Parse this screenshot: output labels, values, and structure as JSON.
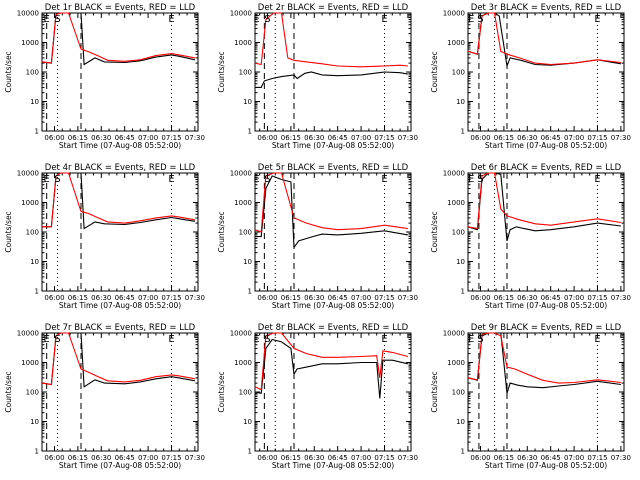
{
  "chart_data": [
    {
      "type": "line",
      "title": "Det 1r BLACK = Events, RED = LLD",
      "xlabel": "Start Time (07-Aug-08 05:52:00)",
      "ylabel": "Counts/sec",
      "y_scale": "log",
      "ylim": [
        1,
        10000
      ],
      "y_ticks": [
        "1",
        "10",
        "100",
        "1000",
        "10000"
      ],
      "x_ticks": [
        "06:00",
        "06:15",
        "06:30",
        "06:45",
        "07:00",
        "07:15",
        "07:30"
      ],
      "markers": [
        {
          "label": "E",
          "t": "05:55"
        },
        {
          "label": "S",
          "t": "06:02"
        },
        {
          "label": "E",
          "t": "07:15"
        }
      ],
      "dashed_lines": [
        "05:55",
        "06:17"
      ],
      "dotted_lines": [
        "06:02",
        "07:15"
      ],
      "series": [
        {
          "color": "#000000",
          "x": [
            "05:52",
            "05:58",
            "06:01",
            "06:04",
            "06:09",
            "06:17",
            "06:19",
            "06:26",
            "06:32",
            "06:45",
            "06:55",
            "07:05",
            "07:15",
            "07:20",
            "07:30"
          ],
          "y": [
            220,
            200,
            9000,
            10000,
            10000,
            10000,
            180,
            300,
            220,
            210,
            240,
            320,
            380,
            340,
            260
          ]
        },
        {
          "color": "#ff0000",
          "x": [
            "05:52",
            "05:58",
            "06:01",
            "06:04",
            "06:09",
            "06:17",
            "06:22",
            "06:28",
            "06:34",
            "06:45",
            "06:55",
            "07:05",
            "07:15",
            "07:20",
            "07:30"
          ],
          "y": [
            220,
            200,
            9000,
            10000,
            10000,
            600,
            480,
            350,
            250,
            230,
            260,
            360,
            420,
            380,
            300
          ]
        }
      ]
    },
    {
      "type": "line",
      "title": "Det 2r BLACK = Events, RED = LLD",
      "xlabel": "Start Time (07-Aug-08 05:52:00)",
      "ylabel": "Counts/sec",
      "y_scale": "log",
      "ylim": [
        1,
        10000
      ],
      "y_ticks": [
        "1",
        "10",
        "100",
        "1000",
        "10000"
      ],
      "x_ticks": [
        "06:00",
        "06:15",
        "06:30",
        "06:45",
        "07:00",
        "07:15",
        "07:30"
      ],
      "markers": [
        {
          "label": "E",
          "t": "05:53"
        },
        {
          "label": "S",
          "t": "06:00"
        },
        {
          "label": "E",
          "t": "07:15"
        }
      ],
      "dashed_lines": [
        "05:58",
        "06:17"
      ],
      "dotted_lines": [
        "06:05",
        "07:15"
      ],
      "series": [
        {
          "color": "#000000",
          "x": [
            "05:52",
            "05:56",
            "05:58",
            "06:03",
            "06:09",
            "06:17",
            "06:19",
            "06:24",
            "06:28",
            "06:35",
            "06:45",
            "07:00",
            "07:15",
            "07:25",
            "07:30"
          ],
          "y": [
            30,
            30,
            50,
            60,
            70,
            80,
            60,
            90,
            100,
            80,
            75,
            80,
            100,
            95,
            85
          ]
        },
        {
          "color": "#ff0000",
          "x": [
            "05:52",
            "05:56",
            "05:59",
            "06:04",
            "06:09",
            "06:13",
            "06:17",
            "06:25",
            "06:35",
            "06:45",
            "07:00",
            "07:15",
            "07:25",
            "07:30"
          ],
          "y": [
            200,
            180,
            6000,
            10000,
            10000,
            300,
            250,
            220,
            190,
            160,
            150,
            160,
            170,
            160
          ]
        }
      ]
    },
    {
      "type": "line",
      "title": "Det 3r BLACK = Events, RED = LLD",
      "xlabel": "Start Time (07-Aug-08 05:52:00)",
      "ylabel": "Counts/sec",
      "y_scale": "log",
      "ylim": [
        1,
        10000
      ],
      "y_ticks": [
        "1",
        "10",
        "100",
        "1000",
        "10000"
      ],
      "x_ticks": [
        "06:00",
        "06:15",
        "06:30",
        "06:45",
        "07:00",
        "07:15",
        "07:30"
      ],
      "markers": [
        {
          "label": "E",
          "t": "05:54"
        },
        {
          "label": "S",
          "t": "06:00"
        },
        {
          "label": "E",
          "t": "07:15"
        }
      ],
      "dashed_lines": [
        "05:59",
        "06:17"
      ],
      "dotted_lines": [
        "06:09",
        "07:15"
      ],
      "series": [
        {
          "color": "#000000",
          "x": [
            "05:52",
            "05:58",
            "06:01",
            "06:05",
            "06:09",
            "06:12",
            "06:17",
            "06:19",
            "06:26",
            "06:35",
            "06:45",
            "07:00",
            "07:15",
            "07:30"
          ],
          "y": [
            500,
            400,
            8000,
            10000,
            10000,
            8000,
            160,
            300,
            250,
            180,
            170,
            200,
            260,
            190
          ]
        },
        {
          "color": "#ff0000",
          "x": [
            "05:52",
            "05:58",
            "06:01",
            "06:05",
            "06:09",
            "06:13",
            "06:17",
            "06:25",
            "06:35",
            "06:45",
            "07:00",
            "07:15",
            "07:30"
          ],
          "y": [
            500,
            400,
            8000,
            10000,
            10000,
            500,
            400,
            300,
            200,
            180,
            200,
            260,
            210
          ]
        }
      ]
    },
    {
      "type": "line",
      "title": "Det 4r BLACK = Events, RED = LLD",
      "xlabel": "Start Time (07-Aug-08 05:52:00)",
      "ylabel": "Counts/sec",
      "y_scale": "log",
      "ylim": [
        1,
        10000
      ],
      "y_ticks": [
        "1",
        "10",
        "100",
        "1000",
        "10000"
      ],
      "x_ticks": [
        "06:00",
        "06:15",
        "06:30",
        "06:45",
        "07:00",
        "07:15",
        "07:30"
      ],
      "markers": [
        {
          "label": "E",
          "t": "05:55"
        },
        {
          "label": "S",
          "t": "06:02"
        },
        {
          "label": "E",
          "t": "07:15"
        }
      ],
      "dashed_lines": [
        "05:55",
        "06:17"
      ],
      "dotted_lines": [
        "06:02",
        "07:15"
      ],
      "series": [
        {
          "color": "#000000",
          "x": [
            "05:52",
            "05:58",
            "06:01",
            "06:04",
            "06:09",
            "06:17",
            "06:19",
            "06:26",
            "06:32",
            "06:45",
            "06:55",
            "07:05",
            "07:15",
            "07:20",
            "07:30"
          ],
          "y": [
            150,
            150,
            8000,
            10000,
            10000,
            10000,
            130,
            220,
            190,
            180,
            210,
            260,
            310,
            280,
            230
          ]
        },
        {
          "color": "#ff0000",
          "x": [
            "05:52",
            "05:58",
            "06:01",
            "06:04",
            "06:09",
            "06:17",
            "06:22",
            "06:28",
            "06:34",
            "06:45",
            "06:55",
            "07:05",
            "07:15",
            "07:20",
            "07:30"
          ],
          "y": [
            150,
            150,
            8000,
            10000,
            10000,
            500,
            420,
            300,
            220,
            200,
            240,
            300,
            350,
            320,
            260
          ]
        }
      ]
    },
    {
      "type": "line",
      "title": "Det 5r BLACK = Events, RED = LLD",
      "xlabel": "Start Time (07-Aug-08 05:52:00)",
      "ylabel": "Counts/sec",
      "y_scale": "log",
      "ylim": [
        1,
        10000
      ],
      "y_ticks": [
        "1",
        "10",
        "100",
        "1000",
        "10000"
      ],
      "x_ticks": [
        "06:00",
        "06:15",
        "06:30",
        "06:45",
        "07:00",
        "07:15",
        "07:30"
      ],
      "markers": [
        {
          "label": "E",
          "t": "05:53"
        },
        {
          "label": "S",
          "t": "06:00"
        },
        {
          "label": "E",
          "t": "07:15"
        }
      ],
      "dashed_lines": [
        "05:58",
        "06:17"
      ],
      "dotted_lines": [
        "06:05",
        "07:15"
      ],
      "series": [
        {
          "color": "#000000",
          "x": [
            "05:52",
            "05:56",
            "05:59",
            "06:03",
            "06:09",
            "06:15",
            "06:17",
            "06:20",
            "06:25",
            "06:29",
            "06:35",
            "06:45",
            "07:00",
            "07:15",
            "07:30"
          ],
          "y": [
            70,
            70,
            3000,
            8000,
            6000,
            5000,
            30,
            50,
            60,
            70,
            85,
            80,
            90,
            110,
            80
          ]
        },
        {
          "color": "#ff0000",
          "x": [
            "05:52",
            "05:56",
            "05:59",
            "06:04",
            "06:09",
            "06:17",
            "06:25",
            "06:35",
            "06:45",
            "07:00",
            "07:15",
            "07:30"
          ],
          "y": [
            120,
            100,
            8000,
            10000,
            10000,
            300,
            200,
            140,
            120,
            130,
            170,
            130
          ]
        }
      ]
    },
    {
      "type": "line",
      "title": "Det 6r BLACK = Events, RED = LLD",
      "xlabel": "Start Time (07-Aug-08 05:52:00)",
      "ylabel": "Counts/sec",
      "y_scale": "log",
      "ylim": [
        1,
        10000
      ],
      "y_ticks": [
        "1",
        "10",
        "100",
        "1000",
        "10000"
      ],
      "x_ticks": [
        "06:00",
        "06:15",
        "06:30",
        "06:45",
        "07:00",
        "07:15",
        "07:30"
      ],
      "markers": [
        {
          "label": "E",
          "t": "05:54"
        },
        {
          "label": "S",
          "t": "06:00"
        },
        {
          "label": "E",
          "t": "07:15"
        }
      ],
      "dashed_lines": [
        "05:59",
        "06:17"
      ],
      "dotted_lines": [
        "06:09",
        "07:15"
      ],
      "series": [
        {
          "color": "#000000",
          "x": [
            "05:52",
            "05:58",
            "06:01",
            "06:05",
            "06:09",
            "06:13",
            "06:17",
            "06:19",
            "06:23",
            "06:28",
            "06:35",
            "06:45",
            "07:00",
            "07:15",
            "07:30"
          ],
          "y": [
            150,
            120,
            6000,
            10000,
            10000,
            9000,
            50,
            120,
            150,
            130,
            110,
            120,
            150,
            200,
            160
          ]
        },
        {
          "color": "#ff0000",
          "x": [
            "05:52",
            "05:58",
            "06:01",
            "06:05",
            "06:09",
            "06:13",
            "06:17",
            "06:25",
            "06:35",
            "06:45",
            "07:00",
            "07:15",
            "07:30"
          ],
          "y": [
            150,
            130,
            8000,
            10000,
            10000,
            600,
            350,
            260,
            190,
            170,
            220,
            280,
            210
          ]
        }
      ]
    },
    {
      "type": "line",
      "title": "Det 7r BLACK = Events, RED = LLD",
      "xlabel": "Start Time (07-Aug-08 05:52:00)",
      "ylabel": "Counts/sec",
      "y_scale": "log",
      "ylim": [
        1,
        10000
      ],
      "y_ticks": [
        "1",
        "10",
        "100",
        "1000",
        "10000"
      ],
      "x_ticks": [
        "06:00",
        "06:15",
        "06:30",
        "06:45",
        "07:00",
        "07:15",
        "07:30"
      ],
      "markers": [
        {
          "label": "E",
          "t": "05:55"
        },
        {
          "label": "S",
          "t": "06:02"
        },
        {
          "label": "E",
          "t": "07:15"
        }
      ],
      "dashed_lines": [
        "05:55",
        "06:17"
      ],
      "dotted_lines": [
        "06:02",
        "07:15"
      ],
      "series": [
        {
          "color": "#000000",
          "x": [
            "05:52",
            "05:58",
            "06:01",
            "06:04",
            "06:09",
            "06:17",
            "06:19",
            "06:26",
            "06:32",
            "06:45",
            "06:55",
            "07:05",
            "07:15",
            "07:20",
            "07:30"
          ],
          "y": [
            200,
            180,
            8000,
            10000,
            10000,
            10000,
            150,
            260,
            200,
            190,
            220,
            280,
            330,
            300,
            240
          ]
        },
        {
          "color": "#ff0000",
          "x": [
            "05:52",
            "05:58",
            "06:01",
            "06:04",
            "06:09",
            "06:17",
            "06:22",
            "06:28",
            "06:34",
            "06:45",
            "06:55",
            "07:05",
            "07:15",
            "07:20",
            "07:30"
          ],
          "y": [
            200,
            180,
            8000,
            10000,
            10000,
            600,
            460,
            330,
            240,
            220,
            250,
            330,
            380,
            350,
            280
          ]
        }
      ]
    },
    {
      "type": "line",
      "title": "Det 8r BLACK = Events, RED = LLD",
      "xlabel": "Start Time (07-Aug-08 05:52:00)",
      "ylabel": "Counts/sec",
      "y_scale": "log",
      "ylim": [
        1,
        10000
      ],
      "y_ticks": [
        "1",
        "10",
        "100",
        "1000",
        "10000"
      ],
      "x_ticks": [
        "06:00",
        "06:15",
        "06:30",
        "06:45",
        "07:00",
        "07:15",
        "07:30"
      ],
      "markers": [
        {
          "label": "E",
          "t": "05:53"
        },
        {
          "label": "S",
          "t": "06:00"
        },
        {
          "label": "E",
          "t": "07:15"
        }
      ],
      "dashed_lines": [
        "05:58",
        "06:17"
      ],
      "dotted_lines": [
        "06:05",
        "07:15"
      ],
      "series": [
        {
          "color": "#000000",
          "x": [
            "05:52",
            "05:56",
            "05:59",
            "06:03",
            "06:09",
            "06:15",
            "06:17",
            "06:19",
            "06:25",
            "06:35",
            "06:45",
            "07:00",
            "07:10",
            "07:12",
            "07:14",
            "07:20",
            "07:30"
          ],
          "y": [
            100,
            90,
            3000,
            6000,
            5000,
            3000,
            400,
            600,
            700,
            900,
            900,
            1000,
            1000,
            60,
            1200,
            1200,
            900
          ]
        },
        {
          "color": "#ff0000",
          "x": [
            "05:52",
            "05:56",
            "05:59",
            "06:04",
            "06:09",
            "06:17",
            "06:25",
            "06:35",
            "06:45",
            "07:00",
            "07:10",
            "07:12",
            "07:14",
            "07:20",
            "07:30"
          ],
          "y": [
            150,
            120,
            8000,
            10000,
            10000,
            3000,
            2000,
            1500,
            1500,
            1600,
            1700,
            300,
            2500,
            2200,
            1600
          ]
        }
      ]
    },
    {
      "type": "line",
      "title": "Det 9r BLACK = Events, RED = LLD",
      "xlabel": "Start Time (07-Aug-08 05:52:00)",
      "ylabel": "Counts/sec",
      "y_scale": "log",
      "ylim": [
        1,
        10000
      ],
      "y_ticks": [
        "1",
        "10",
        "100",
        "1000",
        "10000"
      ],
      "x_ticks": [
        "06:00",
        "06:15",
        "06:30",
        "06:45",
        "07:00",
        "07:15",
        "07:30"
      ],
      "markers": [
        {
          "label": "E",
          "t": "05:54"
        },
        {
          "label": "S",
          "t": "06:00"
        },
        {
          "label": "E",
          "t": "07:15"
        }
      ],
      "dashed_lines": [
        "05:59",
        "06:17"
      ],
      "dotted_lines": [
        "06:09",
        "07:15"
      ],
      "series": [
        {
          "color": "#000000",
          "x": [
            "05:52",
            "05:58",
            "06:01",
            "06:05",
            "06:09",
            "06:13",
            "06:17",
            "06:19",
            "06:24",
            "06:30",
            "06:40",
            "06:50",
            "07:00",
            "07:15",
            "07:30"
          ],
          "y": [
            300,
            250,
            8000,
            10000,
            10000,
            10000,
            90,
            200,
            170,
            150,
            140,
            160,
            180,
            230,
            180
          ]
        },
        {
          "color": "#ff0000",
          "x": [
            "05:52",
            "05:58",
            "06:01",
            "06:05",
            "06:09",
            "06:13",
            "06:17",
            "06:22",
            "06:30",
            "06:40",
            "06:50",
            "07:00",
            "07:15",
            "07:30"
          ],
          "y": [
            300,
            260,
            9000,
            10000,
            10000,
            8000,
            700,
            600,
            400,
            250,
            200,
            210,
            260,
            210
          ]
        }
      ]
    }
  ]
}
